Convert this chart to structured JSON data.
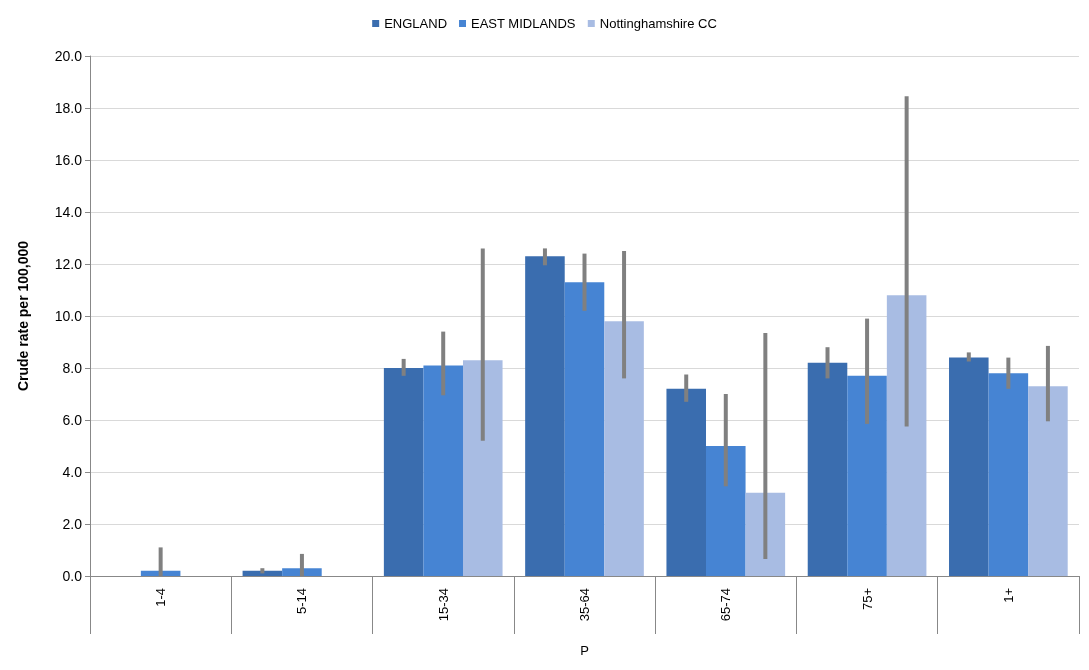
{
  "chart_data": {
    "type": "bar",
    "xlabel": "P",
    "ylabel": "Crude rate per 100,000",
    "categories": [
      "1-4",
      "5-14",
      "15-34",
      "35-64",
      "65-74",
      "75+",
      "1+"
    ],
    "series": [
      {
        "name": "ENGLAND",
        "color": "#3a6daf",
        "values": [
          null,
          0.2,
          8.0,
          12.3,
          7.2,
          8.2,
          8.4
        ],
        "errors": [
          null,
          [
            0.1,
            0.3
          ],
          [
            7.7,
            8.35
          ],
          [
            11.95,
            12.6
          ],
          [
            6.7,
            7.75
          ],
          [
            7.6,
            8.8
          ],
          [
            8.25,
            8.6
          ]
        ]
      },
      {
        "name": "EAST MIDLANDS",
        "color": "#4684d3",
        "values": [
          0.2,
          0.3,
          8.1,
          11.3,
          5.0,
          7.7,
          7.8
        ],
        "errors": [
          [
            0,
            1.1
          ],
          [
            0,
            0.85
          ],
          [
            6.95,
            9.4
          ],
          [
            10.2,
            12.4
          ],
          [
            3.45,
            7.0
          ],
          [
            5.85,
            9.9
          ],
          [
            7.2,
            8.4
          ]
        ]
      },
      {
        "name": "Nottinghamshire CC",
        "color": "#a8bce3",
        "values": [
          null,
          null,
          8.3,
          9.8,
          3.2,
          10.8,
          7.3
        ],
        "errors": [
          null,
          null,
          [
            5.2,
            12.6
          ],
          [
            7.6,
            12.5
          ],
          [
            0.65,
            9.35
          ],
          [
            5.75,
            18.45
          ],
          [
            5.95,
            8.85
          ]
        ]
      }
    ],
    "ylim": [
      0,
      20
    ],
    "yticks": [
      {
        "value": 0,
        "label": "0.0"
      },
      {
        "value": 2,
        "label": "2.0"
      },
      {
        "value": 4,
        "label": "4.0"
      },
      {
        "value": 6,
        "label": "6.0"
      },
      {
        "value": 8,
        "label": "8.0"
      },
      {
        "value": 10,
        "label": "10.0"
      },
      {
        "value": 12,
        "label": "12.0"
      },
      {
        "value": 14,
        "label": "14.0"
      },
      {
        "value": 16,
        "label": "16.0"
      },
      {
        "value": 18,
        "label": "18.0"
      },
      {
        "value": 20,
        "label": "20.0"
      }
    ],
    "grid": "y",
    "legend": "top"
  }
}
